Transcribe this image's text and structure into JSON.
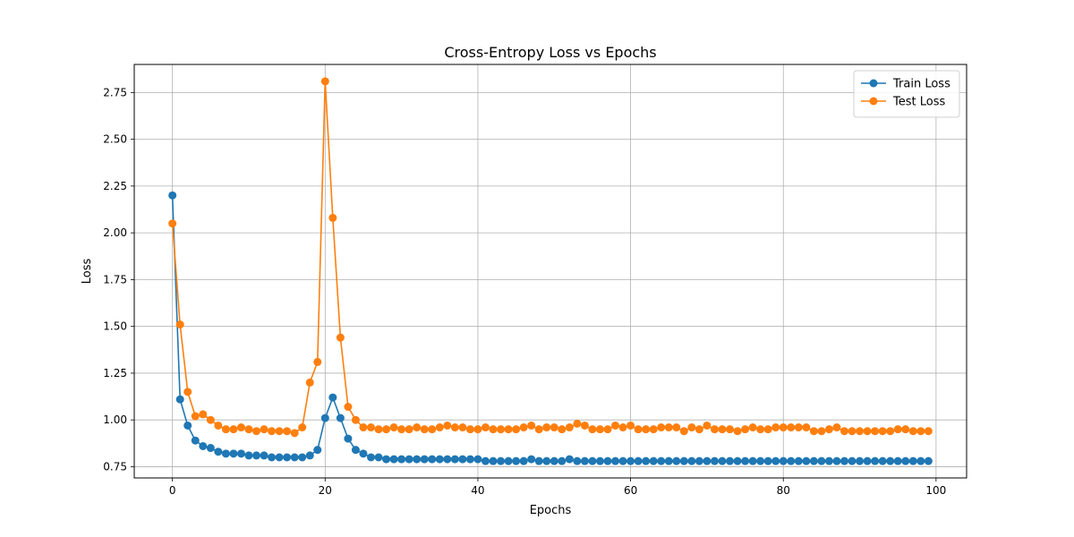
{
  "chart_data": {
    "type": "line",
    "title": "Cross-Entropy Loss vs Epochs",
    "xlabel": "Epochs",
    "ylabel": "Loss",
    "xlim": [
      -5,
      104
    ],
    "ylim": [
      0.69,
      2.9
    ],
    "xticks": [
      0,
      20,
      40,
      60,
      80,
      100
    ],
    "yticks": [
      0.75,
      1.0,
      1.25,
      1.5,
      1.75,
      2.0,
      2.25,
      2.5,
      2.75
    ],
    "xtick_labels": [
      "0",
      "20",
      "40",
      "60",
      "80",
      "100"
    ],
    "ytick_labels": [
      "0.75",
      "1.00",
      "1.25",
      "1.50",
      "1.75",
      "2.00",
      "2.25",
      "2.50",
      "2.75"
    ],
    "grid": true,
    "legend_position": "top-right",
    "series": [
      {
        "name": "Train Loss",
        "color": "#1f77b4",
        "marker": "circle",
        "values": [
          2.2,
          1.11,
          0.97,
          0.89,
          0.86,
          0.85,
          0.83,
          0.82,
          0.82,
          0.82,
          0.81,
          0.81,
          0.81,
          0.8,
          0.8,
          0.8,
          0.8,
          0.8,
          0.81,
          0.84,
          1.01,
          1.12,
          1.01,
          0.9,
          0.84,
          0.82,
          0.8,
          0.8,
          0.79,
          0.79,
          0.79,
          0.79,
          0.79,
          0.79,
          0.79,
          0.79,
          0.79,
          0.79,
          0.79,
          0.79,
          0.79,
          0.78,
          0.78,
          0.78,
          0.78,
          0.78,
          0.78,
          0.79,
          0.78,
          0.78,
          0.78,
          0.78,
          0.79,
          0.78,
          0.78,
          0.78,
          0.78,
          0.78,
          0.78,
          0.78,
          0.78,
          0.78,
          0.78,
          0.78,
          0.78,
          0.78,
          0.78,
          0.78,
          0.78,
          0.78,
          0.78,
          0.78,
          0.78,
          0.78,
          0.78,
          0.78,
          0.78,
          0.78,
          0.78,
          0.78,
          0.78,
          0.78,
          0.78,
          0.78,
          0.78,
          0.78,
          0.78,
          0.78,
          0.78,
          0.78,
          0.78,
          0.78,
          0.78,
          0.78,
          0.78,
          0.78,
          0.78,
          0.78,
          0.78,
          0.78
        ]
      },
      {
        "name": "Test Loss",
        "color": "#ff7f0e",
        "marker": "circle",
        "values": [
          2.05,
          1.51,
          1.15,
          1.02,
          1.03,
          1.0,
          0.97,
          0.95,
          0.95,
          0.96,
          0.95,
          0.94,
          0.95,
          0.94,
          0.94,
          0.94,
          0.93,
          0.96,
          1.2,
          1.31,
          2.81,
          2.08,
          1.44,
          1.07,
          1.0,
          0.96,
          0.96,
          0.95,
          0.95,
          0.96,
          0.95,
          0.95,
          0.96,
          0.95,
          0.95,
          0.96,
          0.97,
          0.96,
          0.96,
          0.95,
          0.95,
          0.96,
          0.95,
          0.95,
          0.95,
          0.95,
          0.96,
          0.97,
          0.95,
          0.96,
          0.96,
          0.95,
          0.96,
          0.98,
          0.97,
          0.95,
          0.95,
          0.95,
          0.97,
          0.96,
          0.97,
          0.95,
          0.95,
          0.95,
          0.96,
          0.96,
          0.96,
          0.94,
          0.96,
          0.95,
          0.97,
          0.95,
          0.95,
          0.95,
          0.94,
          0.95,
          0.96,
          0.95,
          0.95,
          0.96,
          0.96,
          0.96,
          0.96,
          0.96,
          0.94,
          0.94,
          0.95,
          0.96,
          0.94,
          0.94,
          0.94,
          0.94,
          0.94,
          0.94,
          0.94,
          0.95,
          0.95,
          0.94,
          0.94,
          0.94
        ]
      }
    ]
  }
}
